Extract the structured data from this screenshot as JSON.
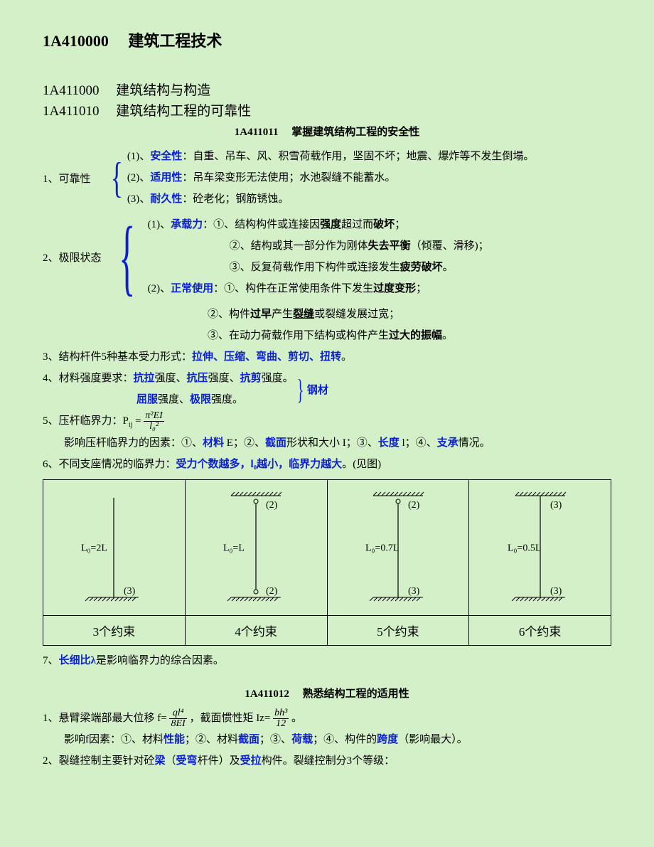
{
  "title_main_code": "1A410000",
  "title_main_text": "建筑工程技术",
  "title_sub1_code": "1A411000",
  "title_sub1_text": "建筑结构与构造",
  "title_sub2_code": "1A411010",
  "title_sub2_text": "建筑结构工程的可靠性",
  "title_sub3_code": "1A411011",
  "title_sub3_text": "掌握建筑结构工程的安全性",
  "item1_label": "1、可靠性",
  "item1_1_pre": "(1)、",
  "item1_1_blue": "安全性",
  "item1_1_rest": "：自重、吊车、风、积雪荷载作用，坚固不坏；地震、爆炸等不发生倒塌。",
  "item1_2_pre": "(2)、",
  "item1_2_blue": "适用性",
  "item1_2_rest": "：吊车梁变形无法使用；水池裂缝不能蓄水。",
  "item1_3_pre": "(3)、",
  "item1_3_blue": "耐久性",
  "item1_3_rest": "：砼老化；钢筋锈蚀。",
  "item2_label": "2、极限状态",
  "item2_1_pre": "(1)、",
  "item2_1_blue": "承载力",
  "item2_1_a": "：①、结构构件或连接因",
  "item2_1_b": "强度",
  "item2_1_c": "超过而",
  "item2_1_d": "破坏",
  "item2_1_e": "；",
  "item2_1_2a": "②、结构或其一部分作为刚体",
  "item2_1_2b": "失去平衡",
  "item2_1_2c": "（倾覆、滑移)；",
  "item2_1_3a": "③、反复荷载作用下构件或连接发生",
  "item2_1_3b": "疲劳破坏",
  "item2_1_3c": "。",
  "item2_2_pre": "(2)、",
  "item2_2_blue": "正常使用",
  "item2_2_a": "：①、构件在正常使用条件下发生",
  "item2_2_b": "过度变形",
  "item2_2_c": "；",
  "item2_2_2a": "②、构件",
  "item2_2_2b": "过早",
  "item2_2_2c": "产生",
  "item2_2_2d": "裂缝",
  "item2_2_2e": "或裂缝发展过宽；",
  "item2_2_3a": "③、在动力荷载作用下结构或构件产生",
  "item2_2_3b": "过大的振幅",
  "item2_2_3c": "。",
  "item3_a": "3、结构杆件5种基本受力形式：",
  "item3_b": "拉伸、压缩、弯曲、剪切、扭转",
  "item3_c": "。",
  "item4_a": "4、材料强度要求：",
  "item4_b1": "抗拉",
  "item4_c1": "强度、",
  "item4_b2": "抗压",
  "item4_c2": "强度、",
  "item4_b3": "抗剪",
  "item4_c3": "强度。",
  "item4_d1": "屈服",
  "item4_e1": "强度、",
  "item4_d2": "极限",
  "item4_e2": "强度。",
  "item4_steel": "钢材",
  "item5_a": "5、压杆临界力：P",
  "item5_sub": "ij",
  "item5_eq": " = ",
  "item5_num": "π²EI",
  "item5_den": "l₀²",
  "item5_inf_a": "影响压杆临界力的因素：①、",
  "item5_inf_b1": "材料",
  "item5_inf_c1": " E；②、",
  "item5_inf_b2": "截面",
  "item5_inf_c2": "形状和大小 I；③、",
  "item5_inf_b3": "长度",
  "item5_inf_c3": " l；④、",
  "item5_inf_b4": "支承",
  "item5_inf_c4": "情况。",
  "item6_a": "6、不同支座情况的临界力：",
  "item6_b": "受力个数越多，l₀越小，临界力越大",
  "item6_c": "。(见图)",
  "table": {
    "columns": [
      {
        "formula": "L₀=2L",
        "top": "",
        "bot": "(3)",
        "footer": "3个约束",
        "top_type": "free",
        "bot_type": "fixed"
      },
      {
        "formula": "L₀=L",
        "top": "(2)",
        "bot": "(2)",
        "footer": "4个约束",
        "top_type": "pin",
        "bot_type": "pin"
      },
      {
        "formula": "L₀=0.7L",
        "top": "(2)",
        "bot": "(3)",
        "footer": "5个约束",
        "top_type": "pin",
        "bot_type": "fixed"
      },
      {
        "formula": "L₀=0.5L",
        "top": "(3)",
        "bot": "(3)",
        "footer": "6个约束",
        "top_type": "fixed",
        "bot_type": "fixed"
      }
    ]
  },
  "item7_a": "7、",
  "item7_b": "长细比λ",
  "item7_c": "是影响临界力的综合因素。",
  "title_sub4_code": "1A411012",
  "title_sub4_text": "熟悉结构工程的适用性",
  "s2_item1_a": "1、悬臂梁端部最大位移 f= ",
  "s2_item1_num1": "ql⁴",
  "s2_item1_den1": "8EI",
  "s2_item1_b": " ，截面惯性矩 Iz= ",
  "s2_item1_num2": "bh³",
  "s2_item1_den2": "12",
  "s2_item1_c": " 。",
  "s2_inf_a": "影响f因素：①、材料",
  "s2_inf_b1": "性能",
  "s2_inf_c1": "；②、材料",
  "s2_inf_b2": "截面",
  "s2_inf_c2": "；③、",
  "s2_inf_b3": "荷载",
  "s2_inf_c3": "；④、构件的",
  "s2_inf_b4": "跨度",
  "s2_inf_c4": "（影响最大）。",
  "s2_item2_a": "2、裂缝控制主要针对砼",
  "s2_item2_b1": "梁",
  "s2_item2_c1": "（",
  "s2_item2_b2": "受弯",
  "s2_item2_c2": "杆件）及",
  "s2_item2_b3": "受拉",
  "s2_item2_c3": "构件。裂缝控制分3个等级："
}
